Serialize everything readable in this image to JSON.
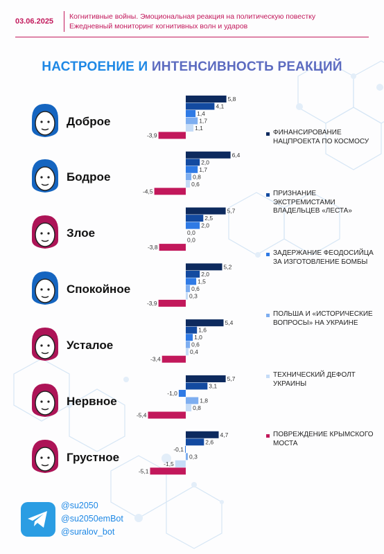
{
  "header": {
    "date": "03.06.2025",
    "line1": "Когнитивные войны. Эмоциональная реакция на политическую повестку",
    "line2": "Ежедневный мониторинг когнитивных волн и ударов"
  },
  "title": {
    "part1": "НАСТРОЕНИЕ И",
    "part2": "ИНТЕНСИВНОСТЬ РЕАКЦИЙ"
  },
  "colors": {
    "accent": "#c2185b",
    "title_blue": "#1e88e5",
    "title_purple": "#5c6bc0",
    "face_blue": "#1565c0",
    "face_red": "#ad1457"
  },
  "chart_data": {
    "type": "bar",
    "orientation": "horizontal",
    "categories": [
      "Доброе",
      "Бодрое",
      "Злое",
      "Спокойное",
      "Усталое",
      "Нервное",
      "Грустное"
    ],
    "series": [
      {
        "name": "ФИНАНСИРОВАНИЕ НАЦПРОЕКТА ПО КОСМОСУ",
        "color": "#0d2a5e",
        "values": [
          5.8,
          6.4,
          5.7,
          5.2,
          5.4,
          5.7,
          4.7
        ]
      },
      {
        "name": "ПРИЗНАНИЕ ЭКСТРЕМИСТАМИ ВЛАДЕЛЬЦЕВ «ЛЕСТА»",
        "color": "#134aa0",
        "values": [
          4.1,
          2.0,
          2.5,
          2.0,
          1.6,
          3.1,
          2.6
        ]
      },
      {
        "name": "ЗАДЕРЖАНИЕ ФЕОДОСИЙЦА ЗА ИЗГОТОВЛЕНИЕ БОМБЫ",
        "color": "#2f7ae5",
        "values": [
          1.4,
          1.7,
          2.0,
          1.5,
          1.0,
          -1.0,
          -0.1
        ]
      },
      {
        "name": "ПОЛЬША И «ИСТОРИЧЕСКИЕ ВОПРОСЫ» НА УКРАИНЕ",
        "color": "#7eaef0",
        "values": [
          1.7,
          0.8,
          0.0,
          0.6,
          0.6,
          1.8,
          0.3
        ]
      },
      {
        "name": "ТЕХНИЧЕСКИЙ ДЕФОЛТ УКРАИНЫ",
        "color": "#c5dcf7",
        "values": [
          1.1,
          0.6,
          0.0,
          0.3,
          0.4,
          0.8,
          -1.5
        ]
      },
      {
        "name": "ПОВРЕЖДЕНИЕ КРЫМСКОГО МОСТА",
        "color": "#c2185b",
        "values": [
          -3.9,
          -4.5,
          -3.8,
          -3.9,
          -3.4,
          -5.4,
          -5.1
        ]
      }
    ],
    "value_labels": [
      [
        "5,8",
        "4,1",
        "1,4",
        "1,7",
        "1,1",
        "-3,9"
      ],
      [
        "6,4",
        "2,0",
        "1,7",
        "0,8",
        "0,6",
        "-4,5"
      ],
      [
        "5,7",
        "2,5",
        "2,0",
        "0,0",
        "0,0",
        "-3,8"
      ],
      [
        "5,2",
        "2,0",
        "1,5",
        "0,6",
        "0,3",
        "-3,9"
      ],
      [
        "5,4",
        "1,6",
        "1,0",
        "0,6",
        "0,4",
        "-3,4"
      ],
      [
        "5,7",
        "3,1",
        "-1,0",
        "1,8",
        "0,8",
        "-5,4"
      ],
      [
        "4,7",
        "2,6",
        "-0,1",
        "0,3",
        "-1,5",
        "-5,1"
      ]
    ],
    "grid": false,
    "legend_position": "right"
  },
  "faces": [
    "face-blue",
    "face-blue",
    "face-red",
    "face-blue",
    "face-red",
    "face-red",
    "face-red"
  ],
  "footer": {
    "icon": "telegram-icon",
    "handles": [
      "@su2050",
      "@su2050emBot",
      "@suralov_bot"
    ]
  }
}
